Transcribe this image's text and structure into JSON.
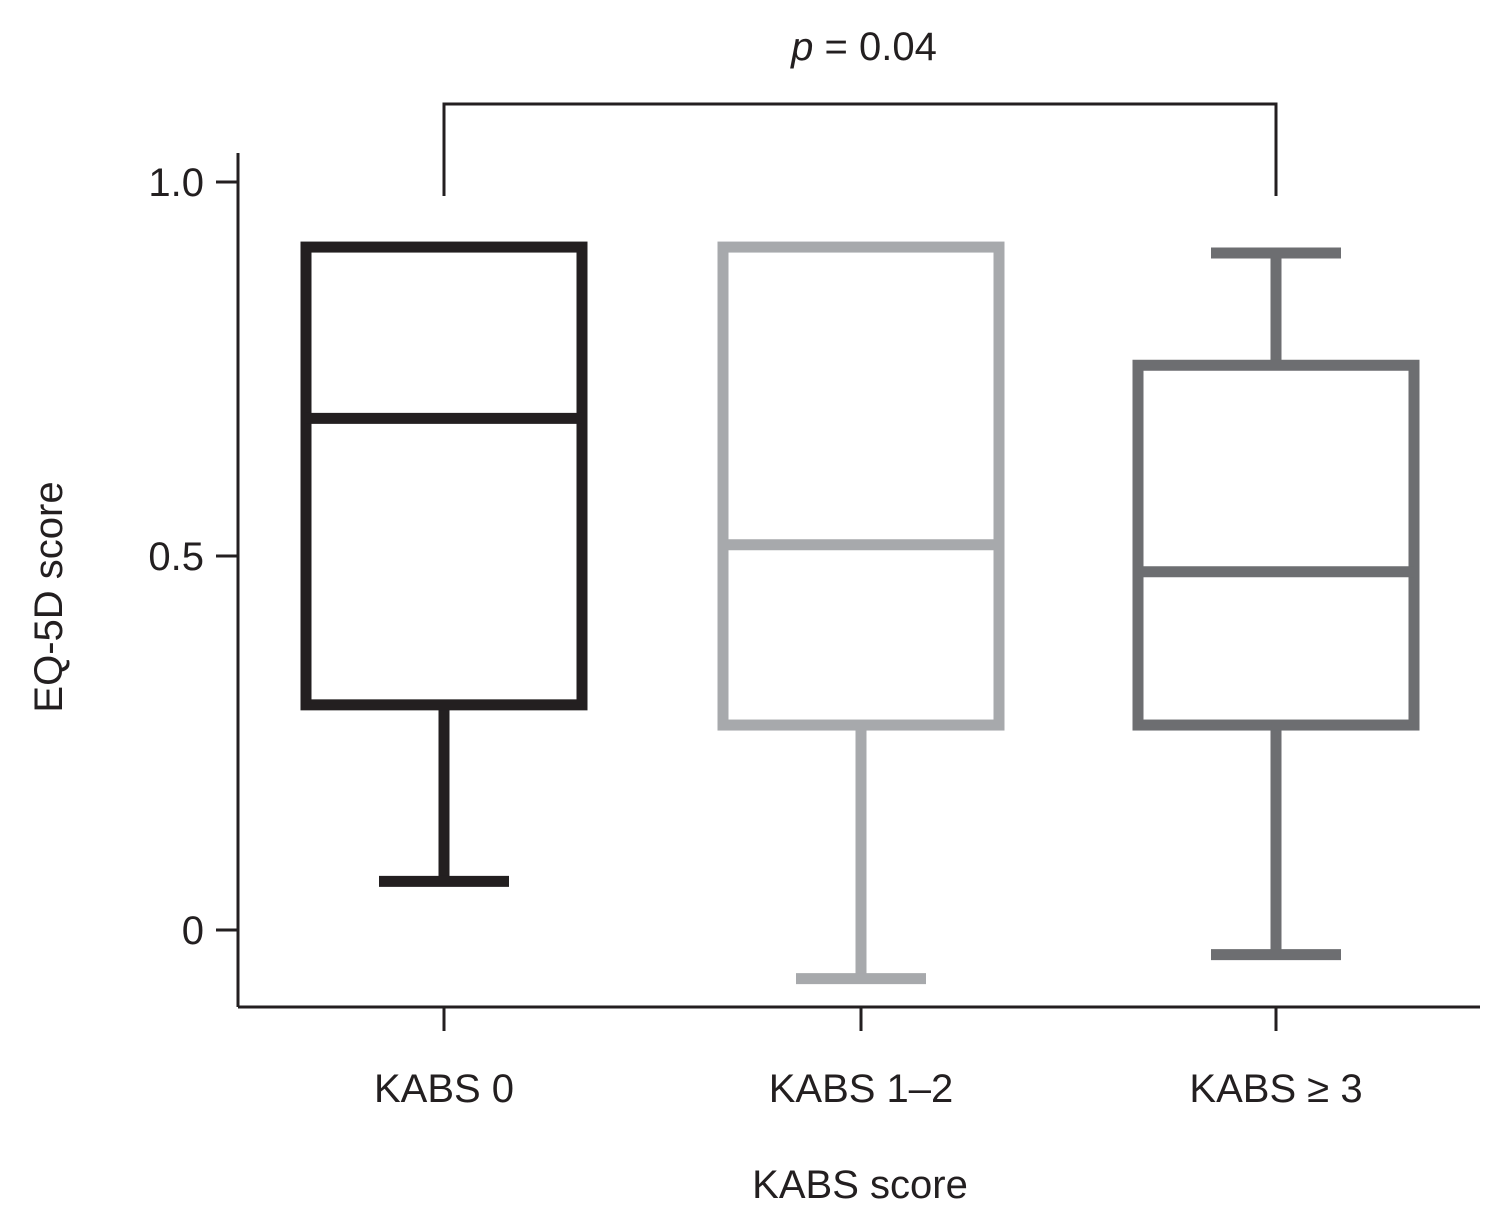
{
  "chart_data": {
    "type": "boxplot",
    "title": "",
    "xlabel": "KABS score",
    "ylabel": "EQ-5D score",
    "ylim": [
      -0.1,
      1.02
    ],
    "yticks": [
      {
        "value": 0,
        "label": "0"
      },
      {
        "value": 0.5,
        "label": "0.5"
      },
      {
        "value": 1.0,
        "label": "1.0"
      }
    ],
    "categories": [
      "KABS 0",
      "KABS 1–2",
      "KABS ≥ 3"
    ],
    "boxes": [
      {
        "category": "KABS 0",
        "min": 0.065,
        "q1": 0.301,
        "median": 0.684,
        "q3": 0.913,
        "max": 0.913,
        "color": "#231f20"
      },
      {
        "category": "KABS 1–2",
        "min": -0.065,
        "q1": 0.274,
        "median": 0.515,
        "q3": 0.913,
        "max": 0.913,
        "color": "#a7a9ac"
      },
      {
        "category": "KABS ≥ 3",
        "min": -0.033,
        "q1": 0.274,
        "median": 0.479,
        "q3": 0.755,
        "max": 0.905,
        "color": "#6d6e71"
      }
    ],
    "annotations": [
      {
        "type": "bracket",
        "from": "KABS 0",
        "to": "KABS ≥ 3",
        "italic_prefix": "p",
        "rest": " = 0.04"
      }
    ],
    "grid": false,
    "legend": "none"
  }
}
